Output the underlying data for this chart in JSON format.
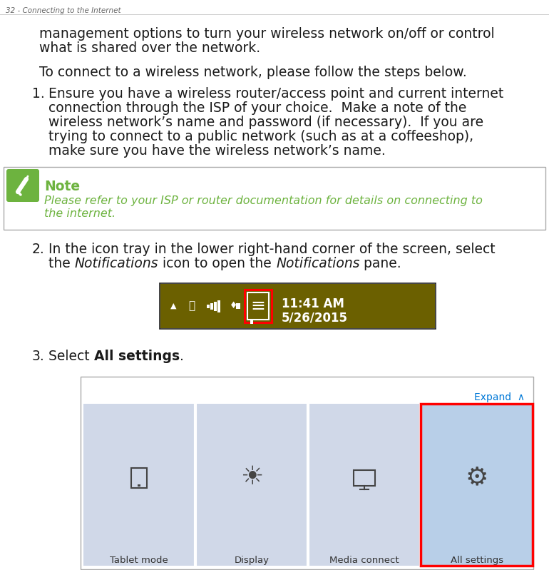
{
  "page_title": "32 - Connecting to the Internet",
  "title_color": "#666666",
  "title_fontsize": 7.5,
  "bg_color": "#ffffff",
  "text_color": "#1a1a1a",
  "para1_line1": "management options to turn your wireless network on/off or control",
  "para1_line2": "what is shared over the network.",
  "para2": "To connect to a wireless network, please follow the steps below.",
  "item1_lines": [
    "Ensure you have a wireless router/access point and current internet",
    "connection through the ISP of your choice.  Make a note of the",
    "wireless network’s name and password (if necessary).  If you are",
    "trying to connect to a public network (such as at a coffeeshop),",
    "make sure you have the wireless network’s name."
  ],
  "note_bg": "#ffffff",
  "note_border": "#aaaaaa",
  "note_icon_bg": "#6db33f",
  "note_title": "Note",
  "note_title_color": "#6db33f",
  "note_text_color": "#6db33f",
  "note_line1": "Please refer to your ISP or router documentation for details on connecting to",
  "note_line2": "the internet.",
  "item2_line1": "In the icon tray in the lower right-hand corner of the screen, select",
  "item2_line2_parts": [
    [
      "the ",
      false
    ],
    [
      "Notifications",
      true
    ],
    [
      " icon to open the ",
      false
    ],
    [
      "Notifications",
      true
    ],
    [
      " pane.",
      false
    ]
  ],
  "item3_pre": "Select ",
  "item3_bold": "All settings",
  "item3_post": ".",
  "taskbar_bg": "#6b6000",
  "taskbar_border": "#222222",
  "taskbar_text": "#ffffff",
  "taskbar_time": "11:41 AM",
  "taskbar_date": "5/26/2015",
  "red_color": "#ff0000",
  "settings_border": "#aaaaaa",
  "settings_bg": "#ffffff",
  "expand_color": "#0078d7",
  "tile_colors": [
    "#d0d8e8",
    "#d0d8e8",
    "#d0d8e8",
    "#b8cfe8"
  ],
  "tile_labels": [
    "Tablet mode",
    "Display",
    "Media connect",
    "All settings"
  ],
  "main_fs": 13.5,
  "note_fs": 12.5,
  "header_fs": 7.5
}
